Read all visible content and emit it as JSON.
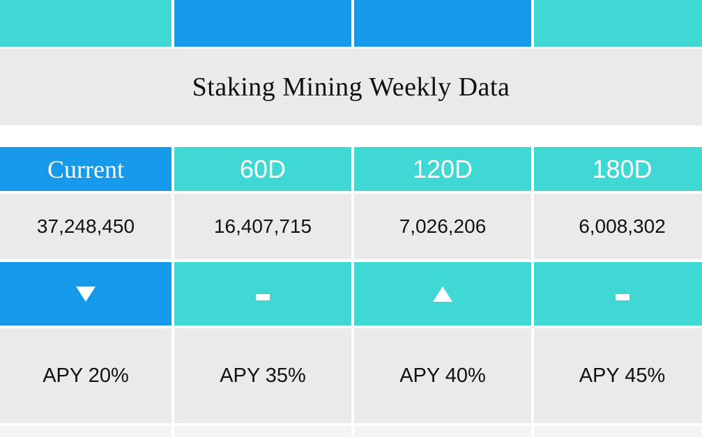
{
  "title": "Staking Mining Weekly Data",
  "colors": {
    "teal": "#3fd8d4",
    "blue": "#1799ea",
    "gray": "#eaeaea",
    "text_dark": "#111111",
    "text_light": "#ffffff"
  },
  "columns": [
    {
      "label": "Current",
      "value": "37,248,450",
      "trend": "down",
      "trend_icon": "triangle-down-icon",
      "apy": "APY 20%"
    },
    {
      "label": "60D",
      "value": "16,407,715",
      "trend": "flat",
      "trend_icon": "dash-icon",
      "apy": "APY 35%"
    },
    {
      "label": "120D",
      "value": "7,026,206",
      "trend": "up",
      "trend_icon": "triangle-up-icon",
      "apy": "APY 40%"
    },
    {
      "label": "180D",
      "value": "6,008,302",
      "trend": "flat",
      "trend_icon": "dash-icon",
      "apy": "APY 45%"
    }
  ]
}
